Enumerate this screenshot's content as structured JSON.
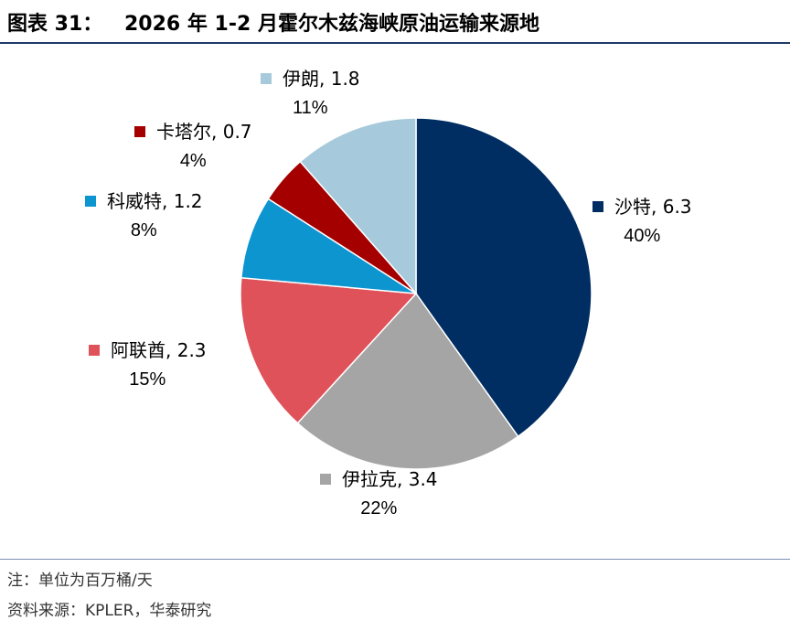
{
  "figure": {
    "label": "图表 31：",
    "title": "2026 年 1-2 月霍尔木兹海峡原油运输来源地"
  },
  "chart_data": {
    "type": "pie",
    "title": "2026 年 1-2 月霍尔木兹海峡原油运输来源地",
    "unit": "百万桶/天",
    "slices": [
      {
        "name": "沙特",
        "value": 6.3,
        "value_label": "6.3",
        "percent": "40%",
        "color": "#002d62"
      },
      {
        "name": "伊拉克",
        "value": 3.4,
        "value_label": "3.4",
        "percent": "22%",
        "color": "#a5a5a5"
      },
      {
        "name": "阿联酋",
        "value": 2.3,
        "value_label": "2.3",
        "percent": "15%",
        "color": "#e0525a"
      },
      {
        "name": "科威特",
        "value": 1.2,
        "value_label": "1.2",
        "percent": "8%",
        "color": "#0d95d0"
      },
      {
        "name": "卡塔尔",
        "value": 0.7,
        "value_label": "0.7",
        "percent": "4%",
        "color": "#a50000"
      },
      {
        "name": "伊朗",
        "value": 1.8,
        "value_label": "1.8",
        "percent": "11%",
        "color": "#a6cadb"
      }
    ]
  },
  "footer": {
    "note": "注：单位为百万桶/天",
    "source": "资料来源：KPLER，华泰研究"
  }
}
